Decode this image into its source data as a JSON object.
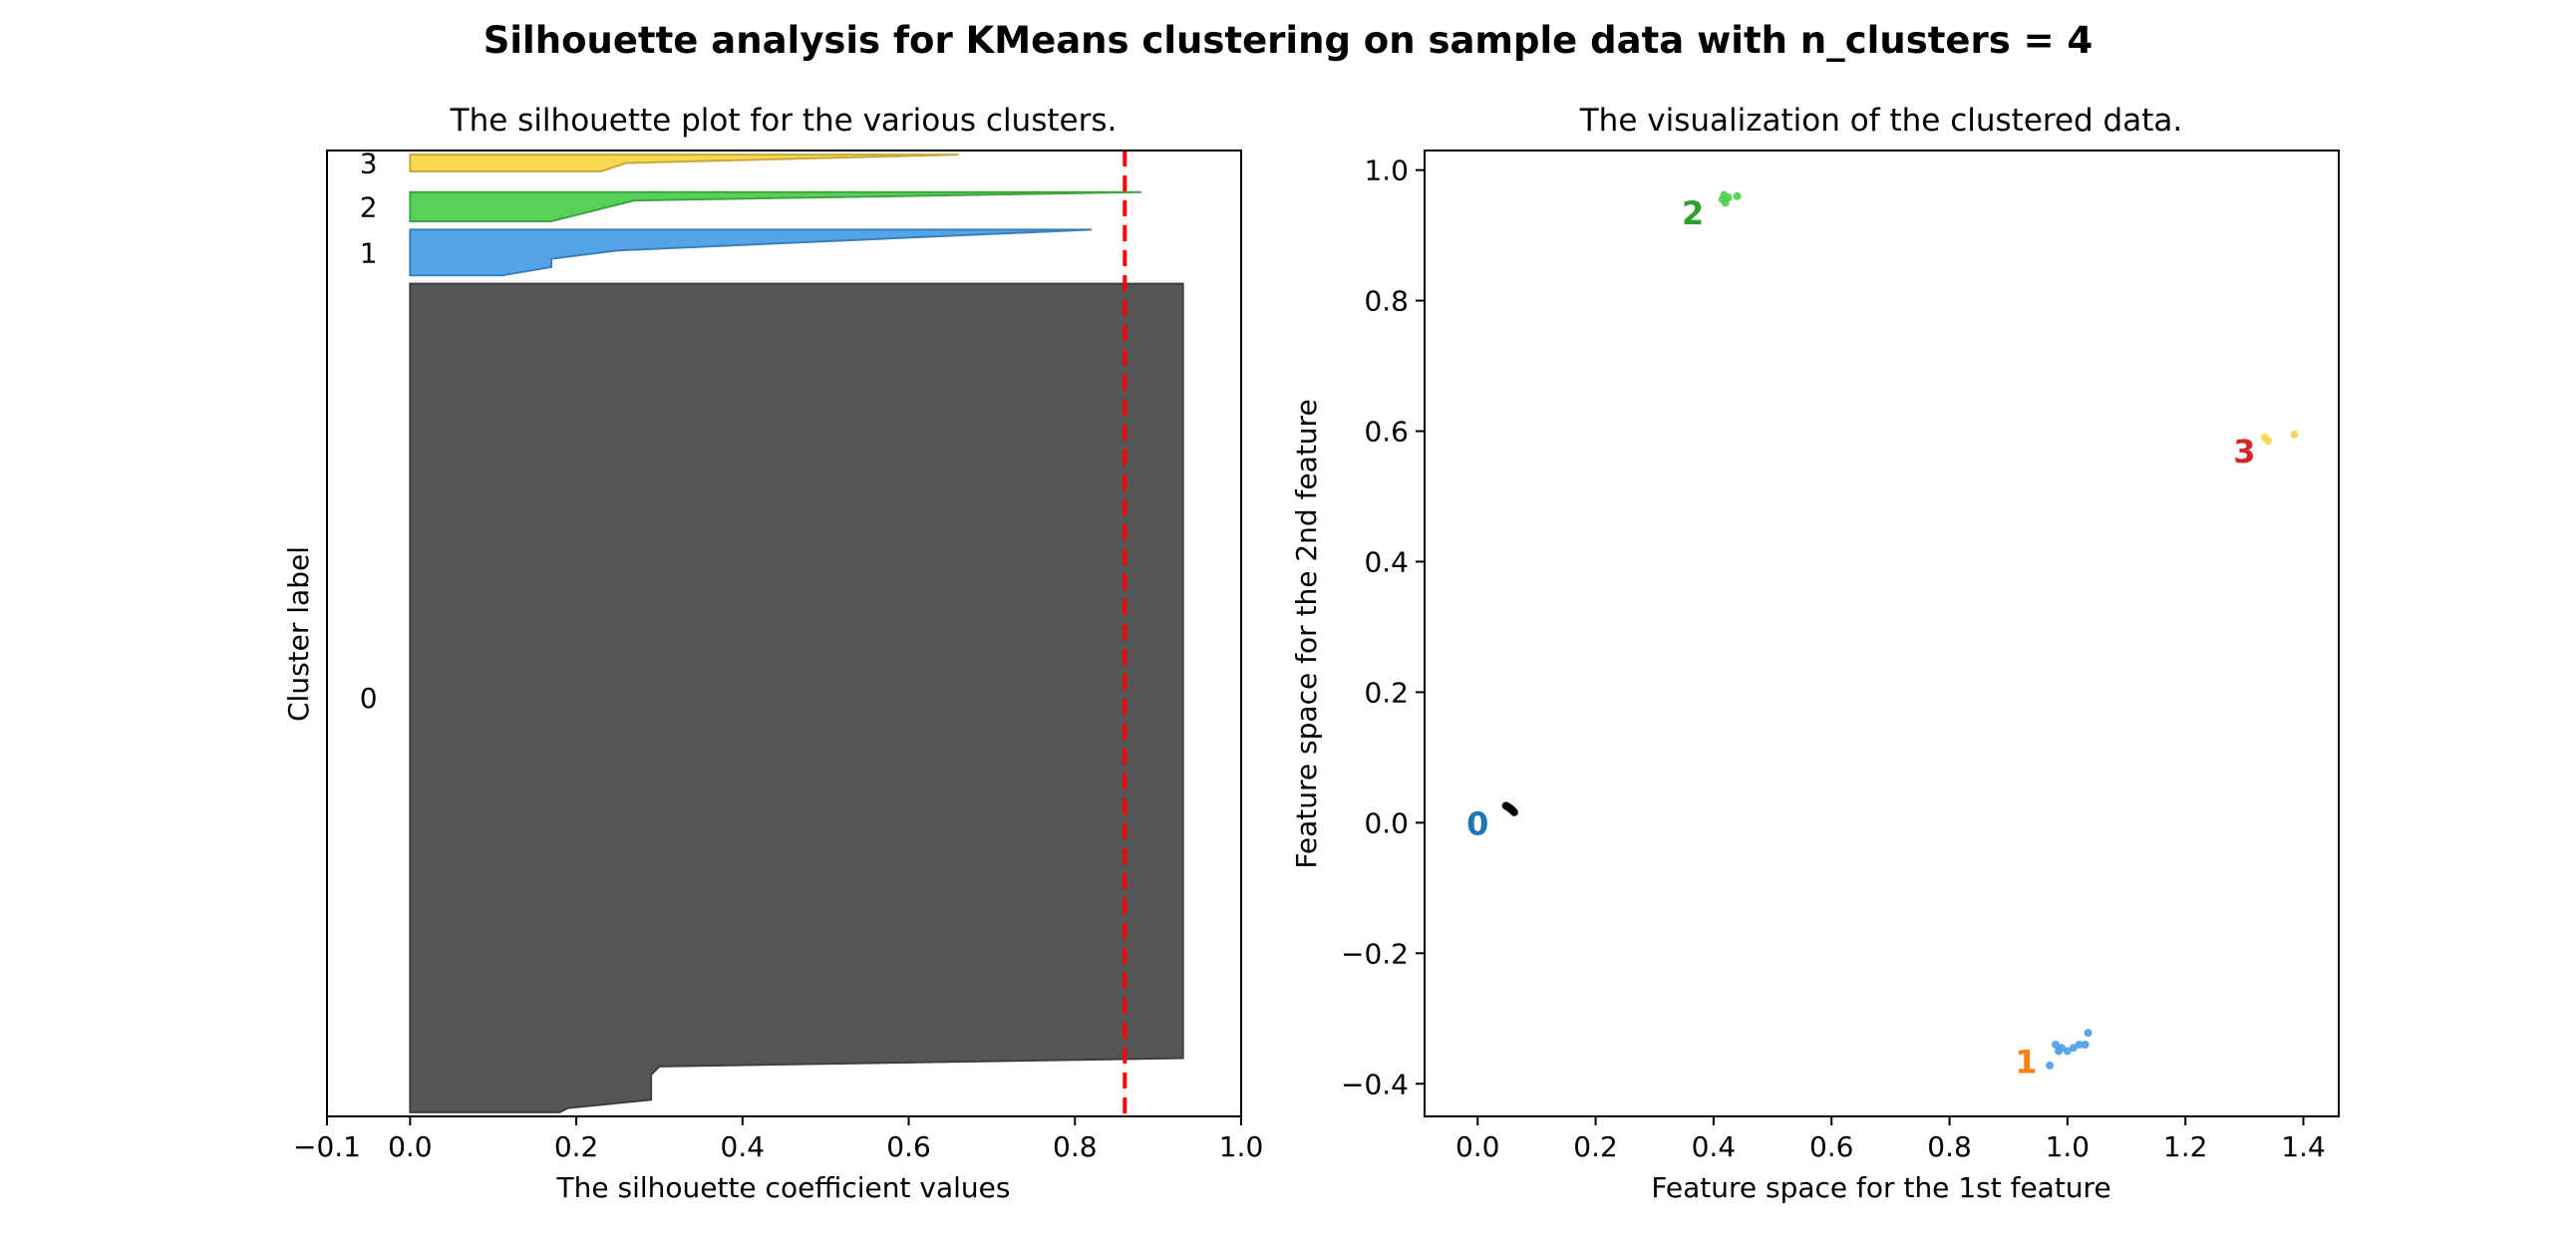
{
  "suptitle": "Silhouette analysis for KMeans clustering on sample data with n_clusters = 4",
  "chart_data": [
    {
      "type": "area",
      "title": "The silhouette plot for the various clusters.",
      "xlabel": "The silhouette coefficient values",
      "ylabel": "Cluster label",
      "xlim": [
        -0.1,
        1.0
      ],
      "xticks": [
        -0.1,
        0.0,
        0.2,
        0.4,
        0.6,
        0.8,
        1.0
      ],
      "xtick_labels": [
        "−0.1",
        "0.0",
        "0.2",
        "0.4",
        "0.6",
        "0.8",
        "1.0"
      ],
      "ylim": [
        0,
        116
      ],
      "yticks": "none",
      "grid": false,
      "silhouette_average": 0.86,
      "average_line_color": "#ff0000",
      "clusters": [
        {
          "label": "0",
          "color": "#4d4d4d",
          "y_lower": 0.5,
          "y_upper": 100,
          "profile": [
            [
              0.5,
              0.18
            ],
            [
              1.0,
              0.19
            ],
            [
              2.0,
              0.29
            ],
            [
              5.0,
              0.29
            ],
            [
              6.0,
              0.3
            ],
            [
              7.0,
              0.93
            ],
            [
              100,
              0.93
            ]
          ]
        },
        {
          "label": "1",
          "color": "#4a9fe8",
          "y_lower": 101,
          "y_upper": 106.5,
          "profile": [
            [
              101,
              0.11
            ],
            [
              102,
              0.17
            ],
            [
              103,
              0.17
            ],
            [
              104,
              0.25
            ],
            [
              106.5,
              0.82
            ]
          ]
        },
        {
          "label": "2",
          "color": "#4ecf4e",
          "y_lower": 107.5,
          "y_upper": 111,
          "profile": [
            [
              107.5,
              0.17
            ],
            [
              110,
              0.27
            ],
            [
              111,
              0.88
            ]
          ]
        },
        {
          "label": "3",
          "color": "#f7d648",
          "y_lower": 113.5,
          "y_upper": 115.5,
          "profile": [
            [
              113.5,
              0.23
            ],
            [
              114.5,
              0.26
            ],
            [
              115.5,
              0.66
            ]
          ]
        }
      ]
    },
    {
      "type": "scatter",
      "title": "The visualization of the clustered data.",
      "xlabel": "Feature space for the 1st feature",
      "ylabel": "Feature space for the 2nd feature",
      "xlim": [
        -0.09,
        1.46
      ],
      "ylim": [
        -0.45,
        1.03
      ],
      "xticks": [
        0.0,
        0.2,
        0.4,
        0.6,
        0.8,
        1.0,
        1.2,
        1.4
      ],
      "xtick_labels": [
        "0.0",
        "0.2",
        "0.4",
        "0.6",
        "0.8",
        "1.0",
        "1.2",
        "1.4"
      ],
      "yticks": [
        -0.4,
        -0.2,
        0.0,
        0.2,
        0.4,
        0.6,
        0.8,
        1.0
      ],
      "ytick_labels": [
        "−0.4",
        "−0.2",
        "0.0",
        "0.2",
        "0.4",
        "0.6",
        "0.8",
        "1.0"
      ],
      "grid": false,
      "series": [
        {
          "color": "#000000",
          "points": [
            [
              0.05,
              0.025
            ],
            [
              0.055,
              0.022
            ],
            [
              0.06,
              0.018
            ],
            [
              0.058,
              0.02
            ],
            [
              0.052,
              0.024
            ],
            [
              0.062,
              0.016
            ],
            [
              0.048,
              0.026
            ],
            [
              0.056,
              0.021
            ]
          ]
        },
        {
          "color": "#4a9fe8",
          "points": [
            [
              0.97,
              -0.372
            ],
            [
              0.98,
              -0.34
            ],
            [
              0.99,
              -0.345
            ],
            [
              1.0,
              -0.35
            ],
            [
              1.01,
              -0.345
            ],
            [
              1.02,
              -0.34
            ],
            [
              1.03,
              -0.34
            ],
            [
              1.035,
              -0.322
            ],
            [
              0.985,
              -0.35
            ]
          ]
        },
        {
          "color": "#4ecf4e",
          "points": [
            [
              0.415,
              0.955
            ],
            [
              0.42,
              0.95
            ],
            [
              0.425,
              0.958
            ],
            [
              0.44,
              0.96
            ],
            [
              0.418,
              0.962
            ]
          ]
        },
        {
          "color": "#f7d648",
          "points": [
            [
              1.335,
              0.59
            ],
            [
              1.34,
              0.585
            ],
            [
              1.385,
              0.595
            ]
          ]
        }
      ],
      "centers": [
        {
          "label": "0",
          "x": 0.0,
          "y": 0.0,
          "color": "#1f77b4"
        },
        {
          "label": "1",
          "x": 0.93,
          "y": -0.365,
          "color": "#ff7f0e"
        },
        {
          "label": "2",
          "x": 0.365,
          "y": 0.935,
          "color": "#2ca02c"
        },
        {
          "label": "3",
          "x": 1.3,
          "y": 0.57,
          "color": "#d62728"
        }
      ]
    }
  ]
}
